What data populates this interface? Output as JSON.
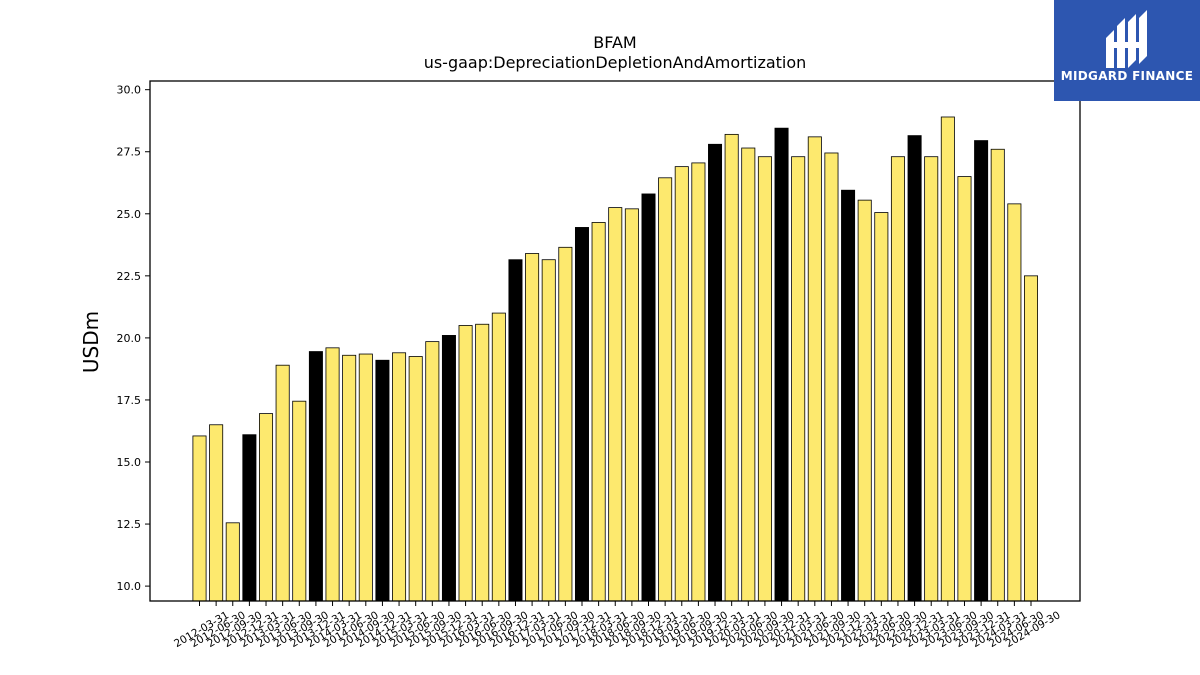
{
  "brand": {
    "name": "MIDGARD FINANCE",
    "bg": "#2d56b0"
  },
  "chart_data": {
    "type": "bar",
    "title": "BFAM",
    "subtitle": "us-gaap:DepreciationDepletionAndAmortization",
    "xlabel": "",
    "ylabel": "USDm",
    "ylim": [
      9.4,
      30.35
    ],
    "yticks": [
      "10.0",
      "12.5",
      "15.0",
      "17.5",
      "20.0",
      "22.5",
      "25.0",
      "27.5",
      "30.0"
    ],
    "colors": {
      "quarter": "#fde96e",
      "year_end": "#000000",
      "edge": "#000000"
    },
    "categories": [
      "2012-03-31",
      "2012-06-30",
      "2012-09-30",
      "2012-12-31",
      "2013-03-31",
      "2013-06-30",
      "2013-09-30",
      "2013-12-31",
      "2014-03-31",
      "2014-06-30",
      "2014-09-30",
      "2014-12-31",
      "2015-03-31",
      "2015-06-30",
      "2015-09-30",
      "2015-12-31",
      "2016-03-31",
      "2016-06-30",
      "2016-09-30",
      "2016-12-31",
      "2017-03-31",
      "2017-06-30",
      "2017-09-30",
      "2017-12-31",
      "2018-03-31",
      "2018-06-30",
      "2018-09-30",
      "2018-12-31",
      "2019-03-31",
      "2019-06-30",
      "2019-09-30",
      "2019-12-31",
      "2020-03-31",
      "2020-06-30",
      "2020-09-30",
      "2020-12-31",
      "2021-03-31",
      "2021-06-30",
      "2021-09-30",
      "2021-12-31",
      "2022-03-31",
      "2022-06-30",
      "2022-09-30",
      "2022-12-31",
      "2023-03-31",
      "2023-06-30",
      "2023-09-30",
      "2023-12-31",
      "2024-03-31",
      "2024-06-30",
      "2024-09-30"
    ],
    "values": [
      16.05,
      16.5,
      12.55,
      16.1,
      16.95,
      18.9,
      17.45,
      19.45,
      19.6,
      19.3,
      19.35,
      19.1,
      19.4,
      19.25,
      19.85,
      20.1,
      20.5,
      20.55,
      21.0,
      23.15,
      23.4,
      23.15,
      23.65,
      24.45,
      24.65,
      25.25,
      25.2,
      25.8,
      26.45,
      26.9,
      27.05,
      27.8,
      28.2,
      27.65,
      27.3,
      28.45,
      27.3,
      28.1,
      27.45,
      25.95,
      25.55,
      25.05,
      27.3,
      28.15,
      27.3,
      28.9,
      26.5,
      27.95,
      27.6,
      25.4,
      22.5
    ],
    "year_end": [
      false,
      false,
      false,
      true,
      false,
      false,
      false,
      true,
      false,
      false,
      false,
      true,
      false,
      false,
      false,
      true,
      false,
      false,
      false,
      true,
      false,
      false,
      false,
      true,
      false,
      false,
      false,
      true,
      false,
      false,
      false,
      true,
      false,
      false,
      false,
      true,
      false,
      false,
      false,
      true,
      false,
      false,
      false,
      true,
      false,
      false,
      false,
      true,
      false,
      false,
      false
    ]
  }
}
